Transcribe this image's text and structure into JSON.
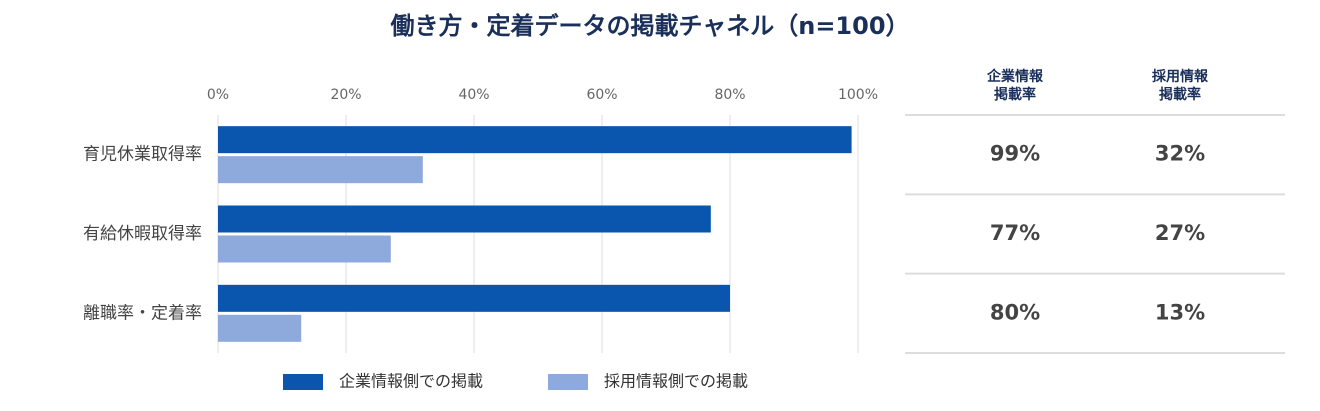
{
  "chart_data": {
    "type": "hbar",
    "title": "働き方・定着データの掲載チャネル（n=100）",
    "categories": [
      "育児休業取得率",
      "有給休暇取得率",
      "離職率・定着率"
    ],
    "series": [
      {
        "name": "企業情報側での掲載",
        "color": "#0a55ad",
        "values": [
          99,
          77,
          80
        ],
        "value_labels": [
          "99%",
          "77%",
          "80%"
        ],
        "table_header": [
          "企業情報",
          "掲載率"
        ]
      },
      {
        "name": "採用情報側での掲載",
        "color": "#8eaadc",
        "values": [
          32,
          27,
          13
        ],
        "value_labels": [
          "32%",
          "27%",
          "13%"
        ],
        "table_header": [
          "採用情報",
          "掲載率"
        ]
      }
    ],
    "xlim": [
      0,
      100
    ],
    "xticks": [
      {
        "value": 0,
        "label": "0%"
      },
      {
        "value": 20,
        "label": "20%"
      },
      {
        "value": 40,
        "label": "40%"
      },
      {
        "value": 60,
        "label": "60%"
      },
      {
        "value": 80,
        "label": "80%"
      },
      {
        "value": 100,
        "label": "100%"
      }
    ],
    "grid": true
  }
}
